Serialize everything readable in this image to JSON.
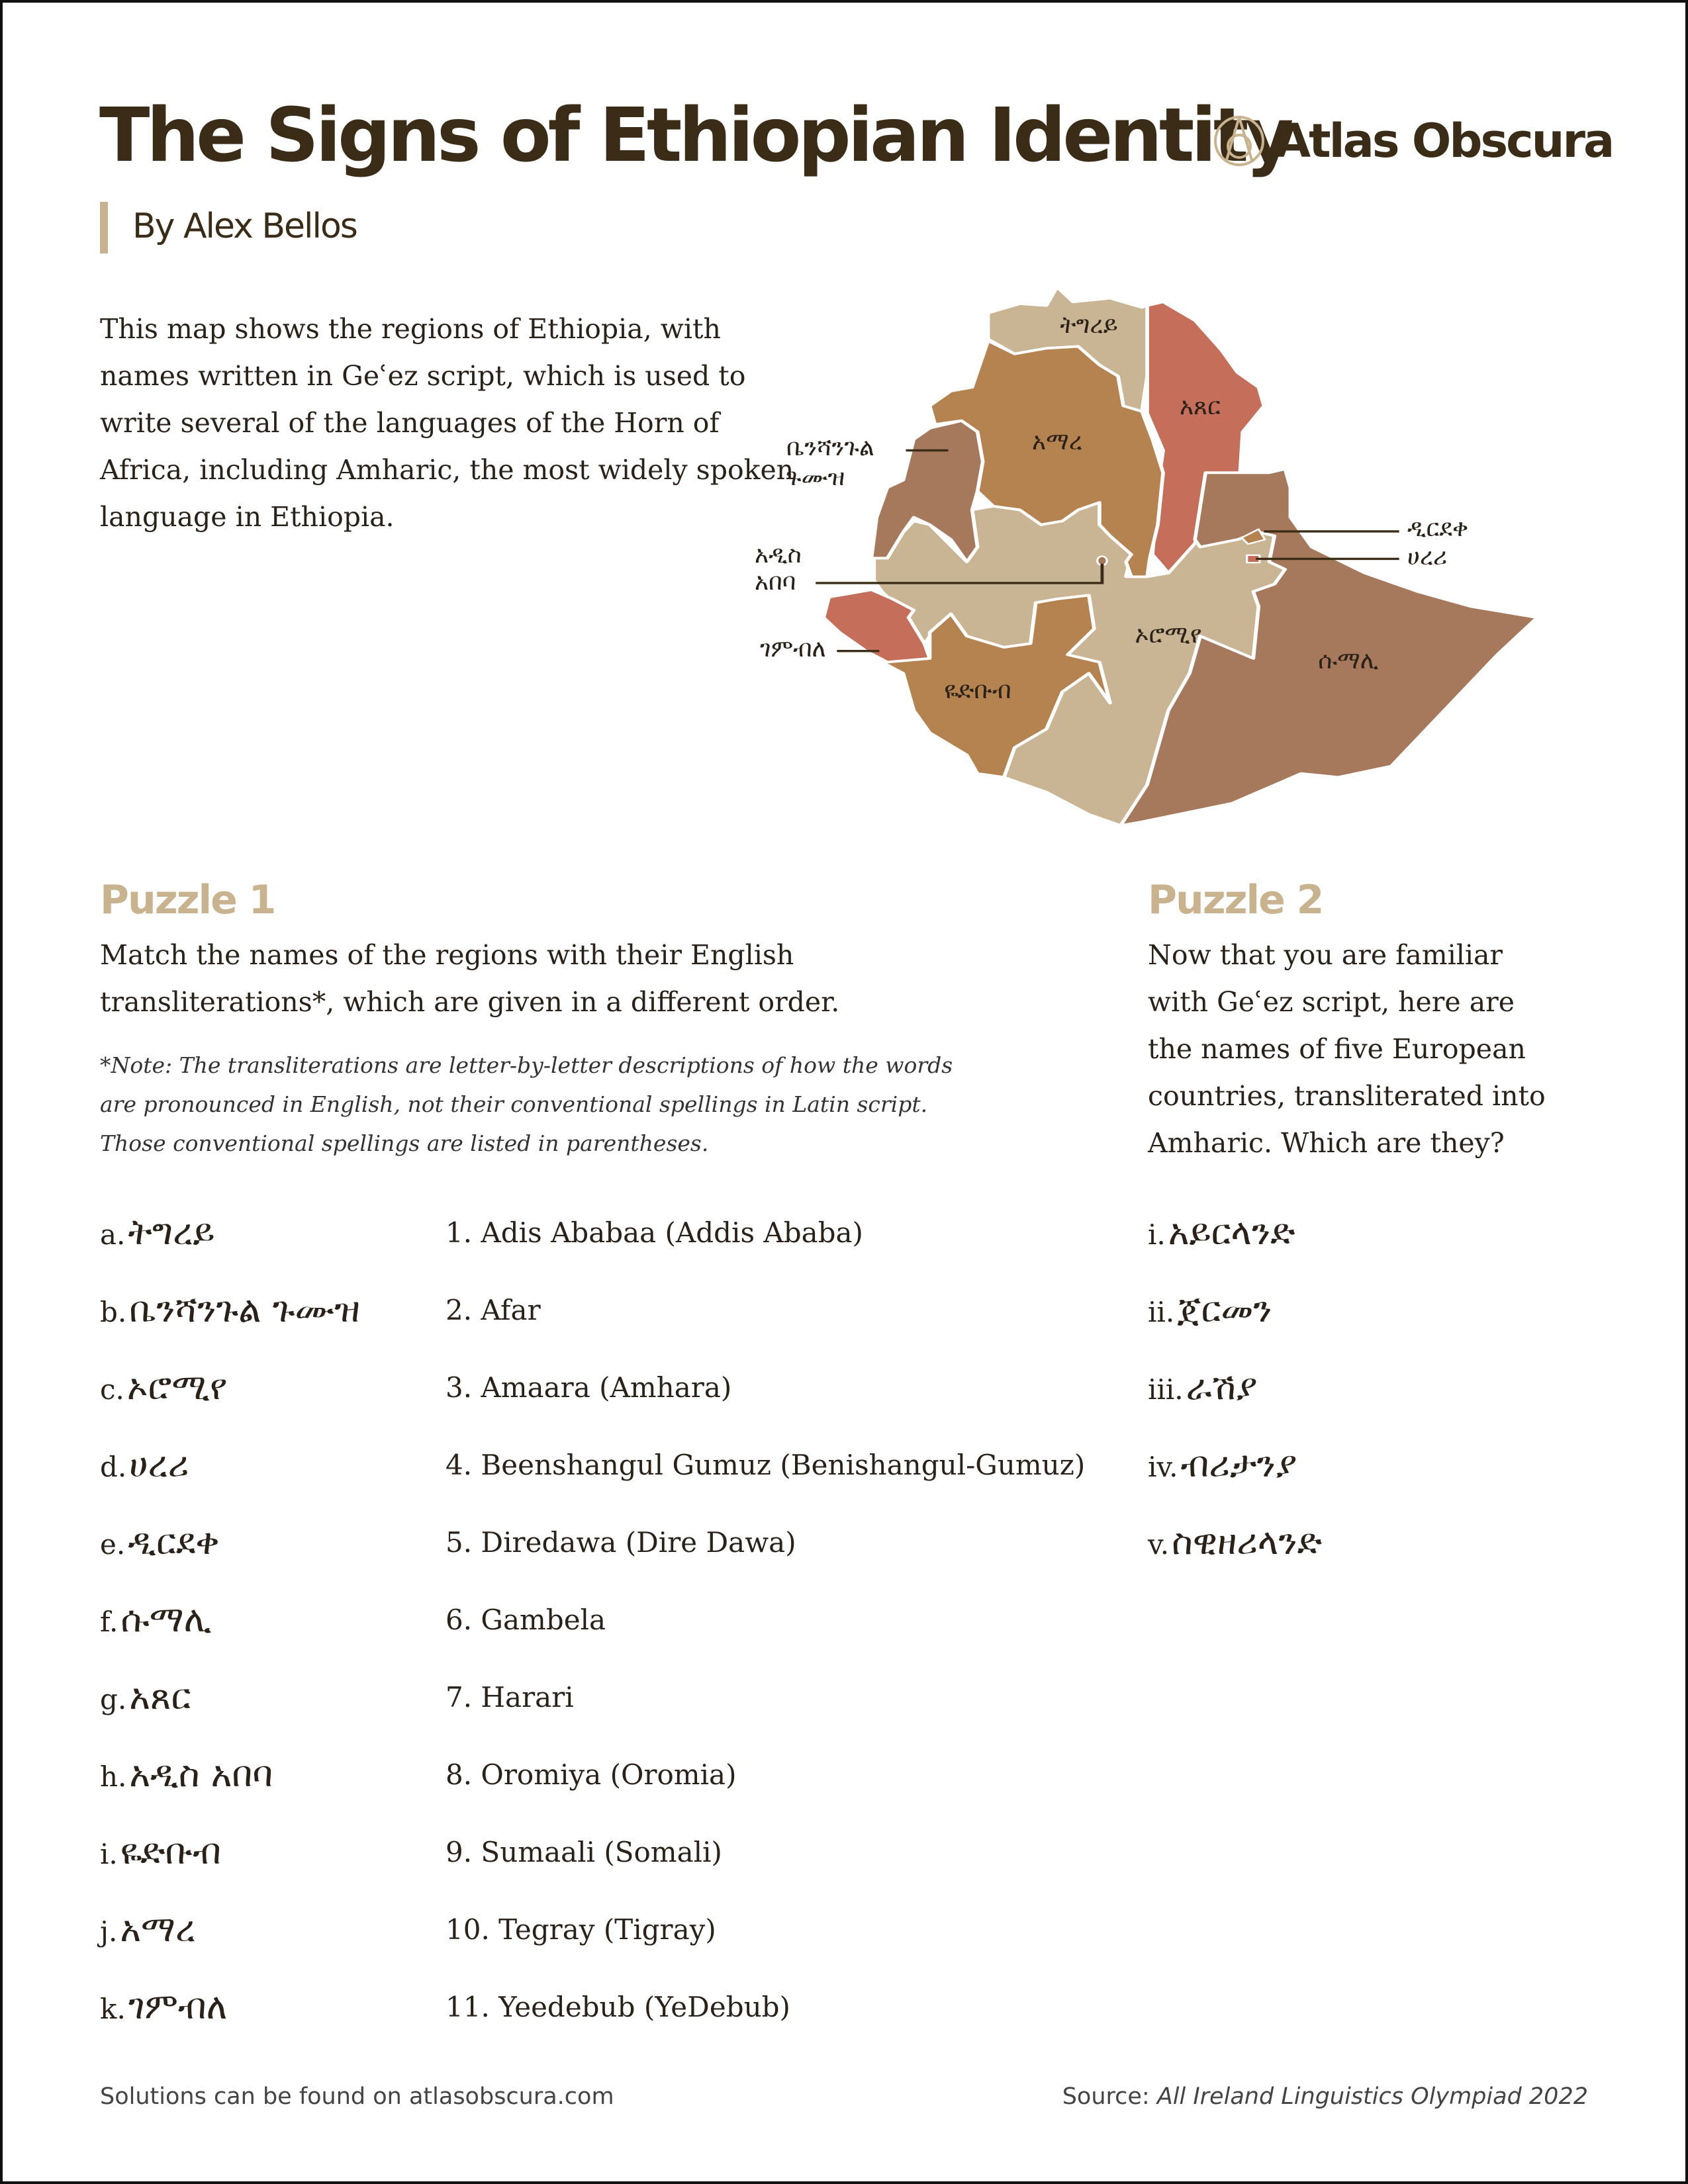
{
  "header": {
    "title": "The Signs of Ethiopian Identity",
    "byline": "By Alex Bellos",
    "logo_text": "Atlas Obscura",
    "logo_icon": "atlas-obscura-circle-a-icon"
  },
  "intro": "This map shows the regions of Ethiopia, with names written in Geʿez script, which is used to write several of the languages of the Horn of Africa, including Amharic, the most widely spoken language in Ethiopia.",
  "map": {
    "labels": {
      "tigray": "ትግረይ",
      "afar": "አጸር",
      "amhara": "አማረ",
      "benishangul_1": "ቤንሻንጉል",
      "benishangul_2": "ጉሙዝ",
      "addis_1": "አዲስ",
      "addis_2": "አበባ",
      "gambela": "ገምብለ",
      "debub": "ዬድቡብ",
      "oromia": "ኦሮሚየ",
      "somali": "ሱማሊ",
      "diredawa": "ዲርደቀ",
      "harari": "ሀረሪ"
    },
    "colors": {
      "tan": "#c9b494",
      "brown": "#b5834f",
      "rust": "#c56e5a",
      "mauve": "#a7795c"
    }
  },
  "puzzle1": {
    "heading": "Puzzle 1",
    "text_lines": [
      "Match the names of the regions with their English",
      "transliterations*, which are given in a different order."
    ],
    "note_lines": [
      "*Note: The transliterations are letter-by-letter descriptions of how the words",
      "are pronounced in English, not their conventional spellings in Latin script.",
      "Those conventional spellings are listed in parentheses."
    ],
    "geez": [
      {
        "label": "a.",
        "text": "ትግረይ"
      },
      {
        "label": "b.",
        "text": "ቤንሻንጉል ጉሙዝ"
      },
      {
        "label": "c.",
        "text": "ኦሮሚየ"
      },
      {
        "label": "d.",
        "text": "ሀረሪ"
      },
      {
        "label": "e.",
        "text": "ዲርደቀ"
      },
      {
        "label": "f.",
        "text": "ሱማሊ"
      },
      {
        "label": "g.",
        "text": "አጸር"
      },
      {
        "label": "h.",
        "text": "አዲስ አበባ"
      },
      {
        "label": "i.",
        "text": "ዬድቡብ"
      },
      {
        "label": "j.",
        "text": "አማረ"
      },
      {
        "label": "k.",
        "text": "ገምብለ"
      }
    ],
    "english": [
      "1. Adis Ababaa (Addis Ababa)",
      "2. Afar",
      "3. Amaara (Amhara)",
      "4. Beenshangul Gumuz (Benishangul-Gumuz)",
      "5. Diredawa (Dire Dawa)",
      "6. Gambela",
      "7. Harari",
      "8. Oromiya (Oromia)",
      "9. Sumaali (Somali)",
      "10. Tegray (Tigray)",
      "11. Yeedebub (YeDebub)"
    ]
  },
  "puzzle2": {
    "heading": "Puzzle 2",
    "text_lines": [
      "Now that you are familiar",
      "with Geʿez script, here are",
      "the names of five European",
      "countries, transliterated into",
      "Amharic. Which are they?"
    ],
    "items": [
      {
        "label": "i.",
        "text": "አይርላንድ"
      },
      {
        "label": "ii.",
        "text": "ጀርመን"
      },
      {
        "label": "iii.",
        "text": "ራሽያ"
      },
      {
        "label": "iv.",
        "text": "ብሪታንያ"
      },
      {
        "label": "v.",
        "text": "ስዊዘሪላንድ"
      }
    ]
  },
  "footer": {
    "solutions": "Solutions can be found on atlasobscura.com",
    "source_prefix": "Source: ",
    "source_title": "All Ireland Linguistics Olympiad 2022"
  }
}
